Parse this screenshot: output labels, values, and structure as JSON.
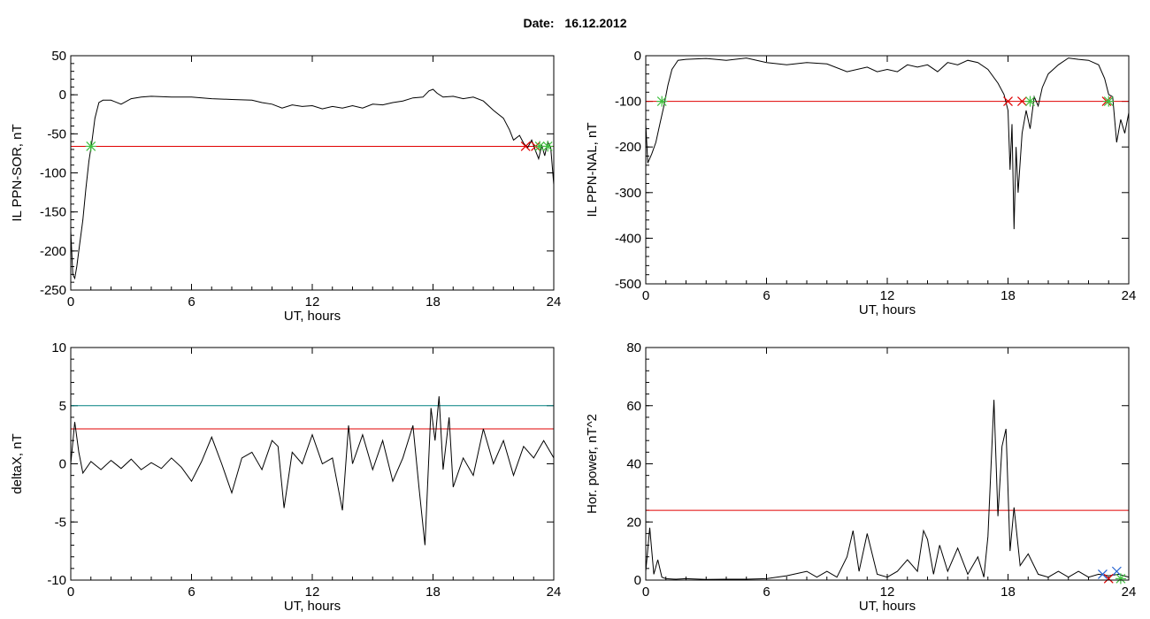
{
  "header": {
    "date_label": "Date:",
    "date_value": "16.12.2012"
  },
  "chart_data": [
    {
      "type": "line",
      "xlabel": "UT, hours",
      "ylabel": "IL PPN-SOR, nT",
      "xlim": [
        0,
        24
      ],
      "ylim": [
        -250,
        50
      ],
      "xticks": [
        0,
        6,
        12,
        18,
        24
      ],
      "yticks": [
        -250,
        -200,
        -150,
        -100,
        -50,
        0,
        50
      ],
      "series": [
        {
          "color": "#000000",
          "x": [
            0,
            0.1,
            0.2,
            0.3,
            0.45,
            0.6,
            0.75,
            0.9,
            1.05,
            1.2,
            1.4,
            1.6,
            2,
            2.5,
            3,
            3.5,
            4,
            5,
            6,
            7,
            8,
            9,
            9.5,
            10,
            10.5,
            11,
            11.5,
            12,
            12.5,
            13,
            13.5,
            14,
            14.5,
            15,
            15.5,
            16,
            16.5,
            17,
            17.5,
            17.8,
            18,
            18.2,
            18.5,
            19,
            19.5,
            20,
            20.5,
            21,
            21.5,
            21.8,
            22,
            22.3,
            22.5,
            22.7,
            22.9,
            23.1,
            23.25,
            23.4,
            23.55,
            23.7,
            23.85,
            24
          ],
          "y": [
            -175,
            -230,
            -235,
            -220,
            -190,
            -160,
            -120,
            -85,
            -60,
            -30,
            -10,
            -7,
            -7,
            -12,
            -5,
            -3,
            -2,
            -3,
            -3,
            -5,
            -6,
            -7,
            -10,
            -12,
            -17,
            -13,
            -15,
            -14,
            -18,
            -15,
            -17,
            -14,
            -17,
            -12,
            -13,
            -10,
            -8,
            -4,
            -3,
            5,
            7,
            2,
            -3,
            -2,
            -5,
            -3,
            -8,
            -20,
            -30,
            -45,
            -58,
            -52,
            -62,
            -68,
            -58,
            -72,
            -82,
            -65,
            -78,
            -60,
            -68,
            -115
          ]
        }
      ],
      "threshold_lines": [
        {
          "y": -66,
          "color": "#e00000"
        }
      ],
      "markers": [
        {
          "x": 1.0,
          "y": -66,
          "color": "#40c040",
          "symbol": "asterisk"
        },
        {
          "x": 22.6,
          "y": -66,
          "color": "#e00000",
          "symbol": "x"
        },
        {
          "x": 23.1,
          "y": -66,
          "color": "#e00000",
          "symbol": "x"
        },
        {
          "x": 23.3,
          "y": -66,
          "color": "#40c040",
          "symbol": "asterisk"
        },
        {
          "x": 23.7,
          "y": -66,
          "color": "#40c040",
          "symbol": "asterisk"
        }
      ]
    },
    {
      "type": "line",
      "xlabel": "UT, hours",
      "ylabel": "IL PPN-NAL, nT",
      "xlim": [
        0,
        24
      ],
      "ylim": [
        -500,
        0
      ],
      "xticks": [
        0,
        6,
        12,
        18,
        24
      ],
      "yticks": [
        -500,
        -400,
        -300,
        -200,
        -100,
        0
      ],
      "series": [
        {
          "color": "#000000",
          "x": [
            0,
            0.1,
            0.3,
            0.5,
            0.7,
            0.9,
            1.1,
            1.3,
            1.6,
            2,
            3,
            4,
            5,
            6,
            7,
            8,
            9,
            10,
            11,
            11.5,
            12,
            12.5,
            13,
            13.5,
            14,
            14.5,
            15,
            15.5,
            16,
            16.5,
            17,
            17.5,
            17.8,
            18,
            18.1,
            18.2,
            18.3,
            18.4,
            18.5,
            18.7,
            18.9,
            19.1,
            19.3,
            19.5,
            19.7,
            20,
            20.5,
            21,
            21.5,
            22,
            22.5,
            22.8,
            23,
            23.2,
            23.4,
            23.6,
            23.8,
            24
          ],
          "y": [
            -150,
            -235,
            -215,
            -190,
            -150,
            -110,
            -65,
            -30,
            -10,
            -8,
            -6,
            -10,
            -5,
            -15,
            -20,
            -15,
            -18,
            -35,
            -25,
            -35,
            -30,
            -35,
            -20,
            -25,
            -20,
            -35,
            -15,
            -20,
            -10,
            -15,
            -30,
            -60,
            -85,
            -120,
            -250,
            -150,
            -380,
            -200,
            -300,
            -170,
            -120,
            -160,
            -90,
            -110,
            -70,
            -40,
            -20,
            -5,
            -8,
            -10,
            -20,
            -50,
            -85,
            -90,
            -190,
            -140,
            -170,
            -125
          ]
        }
      ],
      "threshold_lines": [
        {
          "y": -100,
          "color": "#e00000"
        }
      ],
      "markers": [
        {
          "x": 0.8,
          "y": -100,
          "color": "#40c040",
          "symbol": "asterisk"
        },
        {
          "x": 18.0,
          "y": -100,
          "color": "#e00000",
          "symbol": "x"
        },
        {
          "x": 18.7,
          "y": -100,
          "color": "#e00000",
          "symbol": "x"
        },
        {
          "x": 19.1,
          "y": -100,
          "color": "#40c040",
          "symbol": "asterisk"
        },
        {
          "x": 22.9,
          "y": -100,
          "color": "#e00000",
          "symbol": "x"
        },
        {
          "x": 23.0,
          "y": -100,
          "color": "#40c040",
          "symbol": "asterisk"
        }
      ]
    },
    {
      "type": "line",
      "xlabel": "UT, hours",
      "ylabel": "deltaX, nT",
      "xlim": [
        0,
        24
      ],
      "ylim": [
        -10,
        10
      ],
      "xticks": [
        0,
        6,
        12,
        18,
        24
      ],
      "yticks": [
        -10,
        -5,
        0,
        5,
        10
      ],
      "series": [
        {
          "color": "#000000",
          "x": [
            0,
            0.2,
            0.4,
            0.6,
            1,
            1.5,
            2,
            2.5,
            3,
            3.5,
            4,
            4.5,
            5,
            5.5,
            6,
            6.5,
            7,
            7.5,
            8,
            8.5,
            9,
            9.5,
            10,
            10.3,
            10.6,
            11,
            11.5,
            12,
            12.5,
            13,
            13.5,
            13.8,
            14,
            14.5,
            15,
            15.5,
            16,
            16.5,
            17,
            17.3,
            17.6,
            17.9,
            18.1,
            18.3,
            18.5,
            18.8,
            19,
            19.5,
            20,
            20.5,
            21,
            21.5,
            22,
            22.5,
            23,
            23.5,
            24
          ],
          "y": [
            0,
            3.6,
            1,
            -0.8,
            0.2,
            -0.5,
            0.3,
            -0.4,
            0.4,
            -0.5,
            0.1,
            -0.4,
            0.5,
            -0.3,
            -1.5,
            0.2,
            2.3,
            0,
            -2.5,
            0.5,
            1,
            -0.5,
            2,
            1.5,
            -3.8,
            1,
            0,
            2.5,
            0,
            0.5,
            -4,
            3.3,
            0,
            2.5,
            -0.5,
            2,
            -1.5,
            0.5,
            3.3,
            -2,
            -7,
            4.8,
            2,
            5.8,
            -0.5,
            4,
            -2,
            0.5,
            -1,
            3,
            0,
            2,
            -1,
            1.5,
            0.5,
            2,
            0.5
          ]
        }
      ],
      "threshold_lines": [
        {
          "y": 5,
          "color": "#008080"
        },
        {
          "y": 3,
          "color": "#e00000"
        }
      ]
    },
    {
      "type": "line",
      "xlabel": "UT, hours",
      "ylabel": "Hor. power, nT^2",
      "xlim": [
        0,
        24
      ],
      "ylim": [
        0,
        80
      ],
      "xticks": [
        0,
        6,
        12,
        18,
        24
      ],
      "yticks": [
        0,
        20,
        40,
        60,
        80
      ],
      "series": [
        {
          "color": "#000000",
          "x": [
            0,
            0.2,
            0.4,
            0.6,
            0.8,
            1,
            1.5,
            2,
            3,
            4,
            5,
            6,
            7,
            8,
            8.5,
            9,
            9.5,
            10,
            10.3,
            10.6,
            11,
            11.5,
            12,
            12.5,
            13,
            13.5,
            13.8,
            14,
            14.3,
            14.6,
            15,
            15.5,
            16,
            16.5,
            16.8,
            17,
            17.3,
            17.5,
            17.7,
            17.9,
            18.1,
            18.3,
            18.6,
            19,
            19.5,
            20,
            20.5,
            21,
            21.5,
            22,
            22.5,
            23,
            23.5,
            24
          ],
          "y": [
            3,
            18,
            2,
            7,
            1,
            0.5,
            0.3,
            0.5,
            0.2,
            0.3,
            0.3,
            0.5,
            1.5,
            3,
            1,
            3,
            1,
            8,
            17,
            3,
            16,
            2,
            1,
            3,
            7,
            3,
            17,
            14,
            2,
            12,
            3,
            11,
            2,
            8,
            1,
            15,
            62,
            22,
            46,
            52,
            10,
            25,
            5,
            9,
            2,
            1,
            3,
            1,
            3,
            1,
            2,
            1.5,
            2,
            1
          ]
        }
      ],
      "threshold_lines": [
        {
          "y": 24,
          "color": "#e00000"
        }
      ],
      "markers": [
        {
          "x": 22.7,
          "y": 2,
          "color": "#2060d0",
          "symbol": "x"
        },
        {
          "x": 23.4,
          "y": 3,
          "color": "#2060d0",
          "symbol": "x"
        },
        {
          "x": 23.0,
          "y": 0.5,
          "color": "#e00000",
          "symbol": "x"
        },
        {
          "x": 23.6,
          "y": 0.5,
          "color": "#40c040",
          "symbol": "asterisk"
        }
      ]
    }
  ]
}
